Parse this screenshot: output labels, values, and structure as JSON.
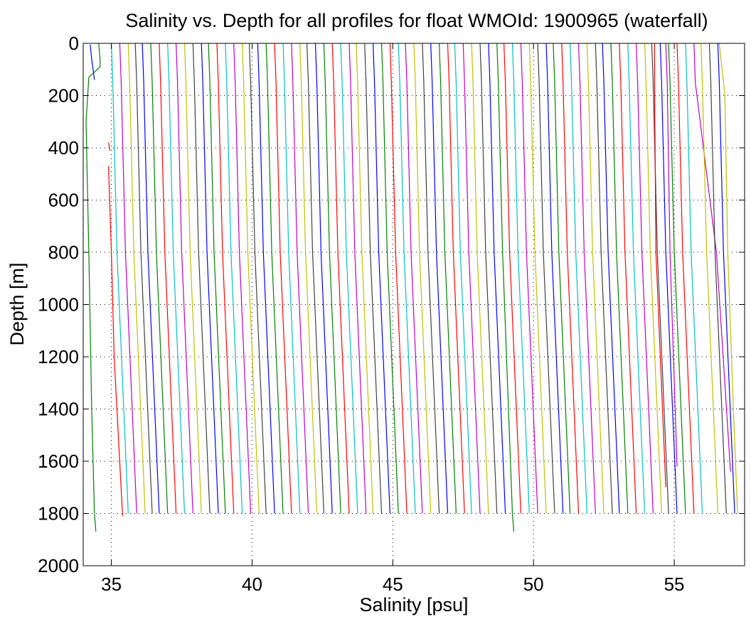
{
  "chart_data": {
    "type": "line",
    "title": "Salinity vs. Depth for all profiles for float WMOId: 1900965 (waterfall)",
    "xlabel": "Salinity [psu]",
    "ylabel": "Depth [m]",
    "xlim": [
      34,
      57.5
    ],
    "ylim": [
      0,
      2000
    ],
    "y_inverted": true,
    "grid": true,
    "legend": "none",
    "xticks": [
      35,
      40,
      45,
      50,
      55
    ],
    "yticks": [
      0,
      200,
      400,
      600,
      800,
      1000,
      1200,
      1400,
      1600,
      1800,
      2000
    ],
    "xtick_labels": [
      "35",
      "40",
      "45",
      "50",
      "55"
    ],
    "ytick_labels": [
      "0",
      "200",
      "400",
      "600",
      "800",
      "1000",
      "1200",
      "1400",
      "1600",
      "1800",
      "2000"
    ],
    "series_colors": [
      "#0000ff",
      "#008000",
      "#ff0000",
      "#00bfbf",
      "#bf00bf",
      "#bfbf00",
      "#404040"
    ],
    "series": [
      {
        "color": "#0000ff",
        "depth": [
          5,
          60,
          100,
          140
        ],
        "salinity": [
          34.25,
          34.3,
          34.35,
          34.4
        ]
      },
      {
        "color": "#008000",
        "depth": [
          0,
          60,
          90,
          130,
          300,
          800,
          1400,
          1800,
          1870
        ],
        "salinity": [
          34.55,
          34.6,
          34.6,
          34.2,
          34.1,
          34.2,
          34.3,
          34.4,
          34.45
        ]
      },
      {
        "color": "#ff0000",
        "depth": [
          380,
          410
        ],
        "salinity": [
          34.9,
          34.95
        ]
      },
      {
        "color": "#ff0000",
        "depth": [
          470,
          800,
          1200,
          1810
        ],
        "salinity": [
          34.9,
          35.0,
          35.1,
          35.4
        ]
      },
      {
        "color": "#00bfbf",
        "depth": [
          0,
          150,
          800,
          1800
        ],
        "salinity": [
          35.0,
          35.05,
          35.2,
          35.6
        ]
      },
      {
        "color": "#bf00bf",
        "depth": [
          0,
          150,
          800,
          1800
        ],
        "salinity": [
          35.3,
          35.35,
          35.5,
          35.9
        ]
      },
      {
        "color": "#bfbf00",
        "depth": [
          0,
          150,
          800,
          1800
        ],
        "salinity": [
          35.6,
          35.65,
          35.8,
          36.2
        ]
      },
      {
        "color": "#404040",
        "depth": [
          0,
          150,
          800,
          1800
        ],
        "salinity": [
          35.85,
          35.9,
          36.05,
          36.45
        ]
      },
      {
        "color": "#0000ff",
        "depth": [
          0,
          150,
          800,
          1800
        ],
        "salinity": [
          36.1,
          36.15,
          36.3,
          36.7
        ]
      },
      {
        "color": "#008000",
        "depth": [
          0,
          150,
          800,
          1800
        ],
        "salinity": [
          36.4,
          36.45,
          36.6,
          37.0
        ]
      },
      {
        "color": "#ff0000",
        "depth": [
          0,
          150,
          800,
          1800
        ],
        "salinity": [
          36.7,
          36.75,
          36.9,
          37.3
        ]
      },
      {
        "color": "#00bfbf",
        "depth": [
          0,
          150,
          800,
          1800
        ],
        "salinity": [
          37.0,
          37.05,
          37.2,
          37.6
        ]
      },
      {
        "color": "#bf00bf",
        "depth": [
          0,
          150,
          800,
          1800
        ],
        "salinity": [
          37.3,
          37.35,
          37.5,
          37.9
        ]
      },
      {
        "color": "#bfbf00",
        "depth": [
          0,
          150,
          800,
          1800
        ],
        "salinity": [
          37.6,
          37.65,
          37.8,
          38.2
        ]
      },
      {
        "color": "#404040",
        "depth": [
          0,
          150,
          800,
          1800
        ],
        "salinity": [
          37.9,
          37.95,
          38.1,
          38.5
        ]
      },
      {
        "color": "#0000ff",
        "depth": [
          0,
          150,
          800,
          1800
        ],
        "salinity": [
          38.2,
          38.25,
          38.4,
          38.8
        ]
      },
      {
        "color": "#008000",
        "depth": [
          0,
          150,
          800,
          1800
        ],
        "salinity": [
          38.45,
          38.5,
          38.65,
          39.05
        ]
      },
      {
        "color": "#ff0000",
        "depth": [
          0,
          150,
          800,
          1800
        ],
        "salinity": [
          38.75,
          38.8,
          38.95,
          39.35
        ]
      },
      {
        "color": "#00bfbf",
        "depth": [
          0,
          150,
          800,
          1800
        ],
        "salinity": [
          39.05,
          39.1,
          39.25,
          39.65
        ]
      },
      {
        "color": "#bf00bf",
        "depth": [
          0,
          150,
          800,
          1800
        ],
        "salinity": [
          39.35,
          39.4,
          39.55,
          39.95
        ]
      },
      {
        "color": "#bfbf00",
        "depth": [
          0,
          150,
          800,
          1800
        ],
        "salinity": [
          39.65,
          39.7,
          39.85,
          40.25
        ]
      },
      {
        "color": "#404040",
        "depth": [
          0,
          150,
          800,
          1800
        ],
        "salinity": [
          39.9,
          39.95,
          40.1,
          40.5
        ]
      },
      {
        "color": "#0000ff",
        "depth": [
          0,
          150,
          800,
          1800
        ],
        "salinity": [
          40.2,
          40.25,
          40.4,
          40.8
        ]
      },
      {
        "color": "#008000",
        "depth": [
          0,
          150,
          800,
          1800
        ],
        "salinity": [
          40.5,
          40.55,
          40.7,
          41.1
        ]
      },
      {
        "color": "#ff0000",
        "depth": [
          0,
          150,
          800,
          1800
        ],
        "salinity": [
          40.8,
          40.85,
          41.0,
          41.4
        ]
      },
      {
        "color": "#00bfbf",
        "depth": [
          0,
          150,
          800,
          1800
        ],
        "salinity": [
          41.1,
          41.15,
          41.3,
          41.7
        ]
      },
      {
        "color": "#bf00bf",
        "depth": [
          0,
          150,
          800,
          1800
        ],
        "salinity": [
          41.4,
          41.45,
          41.6,
          42.0
        ]
      },
      {
        "color": "#bfbf00",
        "depth": [
          0,
          150,
          800,
          1800
        ],
        "salinity": [
          41.7,
          41.75,
          41.9,
          42.3
        ]
      },
      {
        "color": "#404040",
        "depth": [
          0,
          150,
          800,
          1800
        ],
        "salinity": [
          41.95,
          42.0,
          42.15,
          42.55
        ]
      },
      {
        "color": "#0000ff",
        "depth": [
          0,
          150,
          800,
          1800
        ],
        "salinity": [
          42.25,
          42.3,
          42.45,
          42.85
        ]
      },
      {
        "color": "#008000",
        "depth": [
          0,
          150,
          800,
          1800
        ],
        "salinity": [
          42.55,
          42.6,
          42.75,
          43.15
        ]
      },
      {
        "color": "#ff0000",
        "depth": [
          0,
          150,
          800,
          1800
        ],
        "salinity": [
          42.85,
          42.9,
          43.05,
          43.45
        ]
      },
      {
        "color": "#00bfbf",
        "depth": [
          0,
          150,
          800,
          1800
        ],
        "salinity": [
          43.15,
          43.2,
          43.35,
          43.75
        ]
      },
      {
        "color": "#bf00bf",
        "depth": [
          0,
          150,
          800,
          1800
        ],
        "salinity": [
          43.45,
          43.5,
          43.65,
          44.05
        ]
      },
      {
        "color": "#bfbf00",
        "depth": [
          0,
          150,
          800,
          1800
        ],
        "salinity": [
          43.7,
          43.75,
          43.9,
          44.3
        ]
      },
      {
        "color": "#404040",
        "depth": [
          0,
          150,
          800,
          1800
        ],
        "salinity": [
          44.0,
          44.05,
          44.2,
          44.6
        ]
      },
      {
        "color": "#0000ff",
        "depth": [
          0,
          150,
          800,
          1800
        ],
        "salinity": [
          44.3,
          44.35,
          44.5,
          44.9
        ]
      },
      {
        "color": "#008000",
        "depth": [
          0,
          150,
          800,
          1800
        ],
        "salinity": [
          44.6,
          44.65,
          44.8,
          45.2
        ]
      },
      {
        "color": "#ff0000",
        "depth": [
          0,
          150,
          800,
          1800
        ],
        "salinity": [
          44.9,
          44.95,
          45.1,
          45.5
        ]
      },
      {
        "color": "#00bfbf",
        "depth": [
          0,
          150,
          800,
          1800
        ],
        "salinity": [
          45.2,
          45.25,
          45.4,
          45.8
        ]
      },
      {
        "color": "#bf00bf",
        "depth": [
          0,
          150,
          800,
          1800
        ],
        "salinity": [
          45.45,
          45.5,
          45.65,
          46.05
        ]
      },
      {
        "color": "#bfbf00",
        "depth": [
          0,
          150,
          800,
          1800
        ],
        "salinity": [
          45.75,
          45.8,
          45.95,
          46.35
        ]
      },
      {
        "color": "#404040",
        "depth": [
          0,
          150,
          800,
          1800
        ],
        "salinity": [
          46.05,
          46.1,
          46.25,
          46.65
        ]
      },
      {
        "color": "#0000ff",
        "depth": [
          0,
          150,
          800,
          1800
        ],
        "salinity": [
          46.35,
          46.4,
          46.55,
          46.95
        ]
      },
      {
        "color": "#008000",
        "depth": [
          0,
          150,
          800,
          1800
        ],
        "salinity": [
          46.65,
          46.7,
          46.85,
          47.25
        ]
      },
      {
        "color": "#ff0000",
        "depth": [
          0,
          150,
          800,
          1800
        ],
        "salinity": [
          46.95,
          47.0,
          47.15,
          47.55
        ]
      },
      {
        "color": "#00bfbf",
        "depth": [
          0,
          150,
          800,
          1800
        ],
        "salinity": [
          47.2,
          47.25,
          47.4,
          47.8
        ]
      },
      {
        "color": "#bf00bf",
        "depth": [
          0,
          150,
          800,
          1800
        ],
        "salinity": [
          47.5,
          47.55,
          47.7,
          48.1
        ]
      },
      {
        "color": "#bfbf00",
        "depth": [
          0,
          150,
          800,
          1800
        ],
        "salinity": [
          47.8,
          47.85,
          48.0,
          48.4
        ]
      },
      {
        "color": "#404040",
        "depth": [
          0,
          150,
          800,
          1800
        ],
        "salinity": [
          48.1,
          48.15,
          48.3,
          48.7
        ]
      },
      {
        "color": "#0000ff",
        "depth": [
          0,
          150,
          800,
          1800
        ],
        "salinity": [
          48.4,
          48.45,
          48.6,
          49.0
        ]
      },
      {
        "color": "#008000",
        "depth": [
          0,
          150,
          800,
          1800,
          1870
        ],
        "salinity": [
          48.7,
          48.75,
          48.9,
          49.25,
          49.3
        ]
      },
      {
        "color": "#ff0000",
        "depth": [
          0,
          150,
          800,
          1800
        ],
        "salinity": [
          48.95,
          49.0,
          49.15,
          49.55
        ]
      },
      {
        "color": "#00bfbf",
        "depth": [
          0,
          150,
          800,
          1800
        ],
        "salinity": [
          49.25,
          49.3,
          49.45,
          49.85
        ]
      },
      {
        "color": "#bf00bf",
        "depth": [
          0,
          150,
          800,
          1800
        ],
        "salinity": [
          49.55,
          49.6,
          49.75,
          50.15
        ]
      },
      {
        "color": "#bfbf00",
        "depth": [
          0,
          150,
          800,
          1800
        ],
        "salinity": [
          49.85,
          49.9,
          50.05,
          50.45
        ]
      },
      {
        "color": "#404040",
        "depth": [
          0,
          150,
          800,
          1800
        ],
        "salinity": [
          50.15,
          50.2,
          50.35,
          50.75
        ]
      },
      {
        "color": "#0000ff",
        "depth": [
          0,
          150,
          800,
          1800
        ],
        "salinity": [
          50.45,
          50.5,
          50.65,
          51.05
        ]
      },
      {
        "color": "#008000",
        "depth": [
          0,
          150,
          800,
          1800
        ],
        "salinity": [
          50.7,
          50.75,
          50.9,
          51.3
        ]
      },
      {
        "color": "#ff0000",
        "depth": [
          0,
          150,
          800,
          1800
        ],
        "salinity": [
          51.0,
          51.05,
          51.2,
          51.6
        ]
      },
      {
        "color": "#00bfbf",
        "depth": [
          0,
          150,
          800,
          1800
        ],
        "salinity": [
          51.3,
          51.35,
          51.5,
          51.9
        ]
      },
      {
        "color": "#bf00bf",
        "depth": [
          0,
          150,
          800,
          1800
        ],
        "salinity": [
          51.6,
          51.65,
          51.8,
          52.2
        ]
      },
      {
        "color": "#bfbf00",
        "depth": [
          0,
          150,
          800,
          1800
        ],
        "salinity": [
          51.9,
          51.95,
          52.1,
          52.5
        ]
      },
      {
        "color": "#404040",
        "depth": [
          0,
          150,
          800,
          1800
        ],
        "salinity": [
          52.2,
          52.25,
          52.4,
          52.8
        ]
      },
      {
        "color": "#0000ff",
        "depth": [
          0,
          150,
          800,
          1800
        ],
        "salinity": [
          52.45,
          52.5,
          52.65,
          53.05
        ]
      },
      {
        "color": "#008000",
        "depth": [
          0,
          150,
          800,
          1800
        ],
        "salinity": [
          52.75,
          52.8,
          52.95,
          53.35
        ]
      },
      {
        "color": "#ff0000",
        "depth": [
          0,
          150,
          800,
          1800
        ],
        "salinity": [
          53.05,
          53.1,
          53.25,
          53.65
        ]
      },
      {
        "color": "#00bfbf",
        "depth": [
          0,
          150,
          800,
          1800
        ],
        "salinity": [
          53.35,
          53.4,
          53.55,
          53.95
        ]
      },
      {
        "color": "#bf00bf",
        "depth": [
          0,
          150,
          800,
          1800
        ],
        "salinity": [
          53.65,
          53.7,
          53.85,
          54.25
        ]
      },
      {
        "color": "#bfbf00",
        "depth": [
          0,
          150,
          800,
          1800
        ],
        "salinity": [
          53.95,
          54.0,
          54.15,
          54.55
        ]
      },
      {
        "color": "#404040",
        "depth": [
          0,
          150,
          800,
          1800
        ],
        "salinity": [
          54.2,
          54.25,
          54.4,
          54.8
        ]
      },
      {
        "color": "#0000ff",
        "depth": [
          0,
          150,
          800,
          1800
        ],
        "salinity": [
          54.5,
          54.55,
          54.7,
          55.1
        ]
      },
      {
        "color": "#ff0000",
        "depth": [
          0,
          150,
          800,
          1700
        ],
        "salinity": [
          54.3,
          54.3,
          54.35,
          54.7
        ]
      },
      {
        "color": "#bf00bf",
        "depth": [
          0,
          150,
          800,
          1620
        ],
        "salinity": [
          54.7,
          54.75,
          54.85,
          55.1
        ]
      },
      {
        "color": "#008000",
        "depth": [
          0,
          150,
          800,
          1800
        ],
        "salinity": [
          54.8,
          54.85,
          55.0,
          55.4
        ]
      },
      {
        "color": "#ff0000",
        "depth": [
          0,
          150,
          800,
          1800
        ],
        "salinity": [
          55.1,
          55.15,
          55.3,
          55.7
        ]
      },
      {
        "color": "#00bfbf",
        "depth": [
          0,
          150,
          800,
          1800
        ],
        "salinity": [
          55.4,
          55.45,
          55.6,
          56.0
        ]
      },
      {
        "color": "#bf00bf",
        "depth": [
          0,
          150,
          800,
          1640
        ],
        "salinity": [
          55.7,
          55.75,
          56.5,
          57.0
        ]
      },
      {
        "color": "#bfbf00",
        "depth": [
          0,
          150,
          800,
          1800
        ],
        "salinity": [
          55.95,
          56.0,
          56.15,
          56.55
        ]
      },
      {
        "color": "#404040",
        "depth": [
          0,
          150,
          800,
          1800
        ],
        "salinity": [
          56.25,
          56.3,
          56.45,
          56.85
        ]
      },
      {
        "color": "#0000ff",
        "depth": [
          0,
          150,
          800,
          1800
        ],
        "salinity": [
          56.55,
          56.6,
          56.75,
          57.15
        ]
      },
      {
        "color": "#bfbf00",
        "depth": [
          0,
          200,
          800,
          1400,
          1800
        ],
        "salinity": [
          56.6,
          56.8,
          56.9,
          57.1,
          57.25
        ]
      }
    ]
  }
}
